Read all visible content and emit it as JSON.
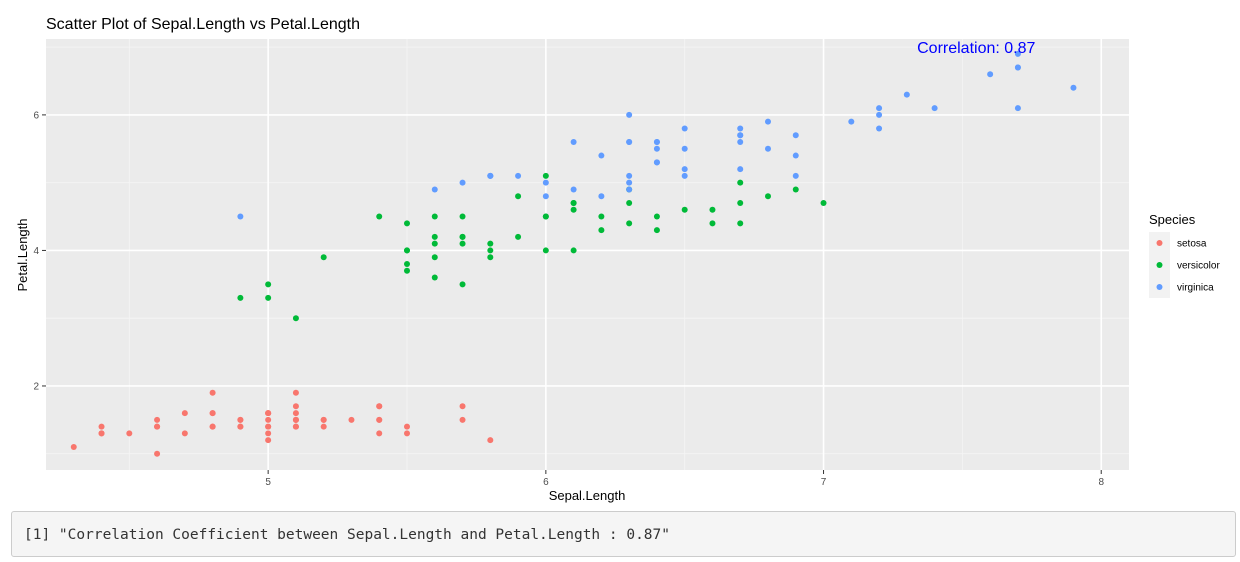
{
  "chart_data": {
    "type": "scatter",
    "title": "Scatter Plot of Sepal.Length vs Petal.Length",
    "xlabel": "Sepal.Length",
    "ylabel": "Petal.Length",
    "xlim": [
      4.2,
      8.1
    ],
    "ylim": [
      0.76,
      7.12
    ],
    "xticks": [
      5,
      6,
      7,
      8
    ],
    "yticks": [
      2,
      4,
      6
    ],
    "x_minor": [
      4.5,
      5.5,
      6.5,
      7.5
    ],
    "y_minor": [
      1,
      3,
      5,
      7
    ],
    "grid": true,
    "legend_title": "Species",
    "legend_position": "right",
    "annotation": {
      "text": "Correlation: 0.87",
      "x": 7.55,
      "y": 7.0,
      "color": "#0000FF"
    },
    "series": [
      {
        "name": "setosa",
        "color": "#F8766D",
        "points": [
          [
            5.1,
            1.4
          ],
          [
            4.9,
            1.4
          ],
          [
            4.7,
            1.3
          ],
          [
            4.6,
            1.5
          ],
          [
            5.0,
            1.4
          ],
          [
            5.4,
            1.7
          ],
          [
            4.6,
            1.4
          ],
          [
            5.0,
            1.5
          ],
          [
            4.4,
            1.4
          ],
          [
            4.9,
            1.5
          ],
          [
            5.4,
            1.5
          ],
          [
            4.8,
            1.6
          ],
          [
            4.8,
            1.4
          ],
          [
            4.3,
            1.1
          ],
          [
            5.8,
            1.2
          ],
          [
            5.7,
            1.5
          ],
          [
            5.4,
            1.3
          ],
          [
            5.1,
            1.4
          ],
          [
            5.7,
            1.7
          ],
          [
            5.1,
            1.5
          ],
          [
            5.4,
            1.7
          ],
          [
            5.1,
            1.5
          ],
          [
            4.6,
            1.0
          ],
          [
            5.1,
            1.7
          ],
          [
            4.8,
            1.9
          ],
          [
            5.0,
            1.6
          ],
          [
            5.0,
            1.6
          ],
          [
            5.2,
            1.5
          ],
          [
            5.2,
            1.4
          ],
          [
            4.7,
            1.6
          ],
          [
            4.8,
            1.6
          ],
          [
            5.4,
            1.5
          ],
          [
            5.2,
            1.5
          ],
          [
            5.5,
            1.4
          ],
          [
            4.9,
            1.5
          ],
          [
            5.0,
            1.2
          ],
          [
            5.5,
            1.3
          ],
          [
            4.9,
            1.4
          ],
          [
            4.4,
            1.3
          ],
          [
            5.1,
            1.5
          ],
          [
            5.0,
            1.3
          ],
          [
            4.5,
            1.3
          ],
          [
            4.4,
            1.3
          ],
          [
            5.0,
            1.6
          ],
          [
            5.1,
            1.9
          ],
          [
            4.8,
            1.4
          ],
          [
            5.1,
            1.6
          ],
          [
            4.6,
            1.4
          ],
          [
            5.3,
            1.5
          ],
          [
            5.0,
            1.4
          ]
        ]
      },
      {
        "name": "versicolor",
        "color": "#00BA38",
        "points": [
          [
            7.0,
            4.7
          ],
          [
            6.4,
            4.5
          ],
          [
            6.9,
            4.9
          ],
          [
            5.5,
            4.0
          ],
          [
            6.5,
            4.6
          ],
          [
            5.7,
            4.5
          ],
          [
            6.3,
            4.7
          ],
          [
            4.9,
            3.3
          ],
          [
            6.6,
            4.6
          ],
          [
            5.2,
            3.9
          ],
          [
            5.0,
            3.5
          ],
          [
            5.9,
            4.2
          ],
          [
            6.0,
            4.0
          ],
          [
            6.1,
            4.7
          ],
          [
            5.6,
            3.6
          ],
          [
            6.7,
            4.4
          ],
          [
            5.6,
            4.5
          ],
          [
            5.8,
            4.1
          ],
          [
            6.2,
            4.5
          ],
          [
            5.6,
            3.9
          ],
          [
            5.9,
            4.8
          ],
          [
            6.1,
            4.0
          ],
          [
            6.3,
            4.9
          ],
          [
            6.1,
            4.7
          ],
          [
            6.4,
            4.3
          ],
          [
            6.6,
            4.4
          ],
          [
            6.8,
            4.8
          ],
          [
            6.7,
            5.0
          ],
          [
            6.0,
            4.5
          ],
          [
            5.7,
            3.5
          ],
          [
            5.5,
            3.8
          ],
          [
            5.5,
            3.7
          ],
          [
            5.8,
            3.9
          ],
          [
            6.0,
            5.1
          ],
          [
            5.4,
            4.5
          ],
          [
            6.0,
            4.5
          ],
          [
            6.7,
            4.7
          ],
          [
            6.3,
            4.4
          ],
          [
            5.6,
            4.1
          ],
          [
            5.5,
            4.0
          ],
          [
            5.5,
            4.4
          ],
          [
            6.1,
            4.6
          ],
          [
            5.8,
            4.0
          ],
          [
            5.0,
            3.3
          ],
          [
            5.6,
            4.2
          ],
          [
            5.7,
            4.2
          ],
          [
            5.7,
            4.2
          ],
          [
            6.2,
            4.3
          ],
          [
            5.1,
            3.0
          ],
          [
            5.7,
            4.1
          ]
        ]
      },
      {
        "name": "virginica",
        "color": "#619CFF",
        "points": [
          [
            6.3,
            6.0
          ],
          [
            5.8,
            5.1
          ],
          [
            7.1,
            5.9
          ],
          [
            6.3,
            5.6
          ],
          [
            6.5,
            5.8
          ],
          [
            7.6,
            6.6
          ],
          [
            4.9,
            4.5
          ],
          [
            7.3,
            6.3
          ],
          [
            6.7,
            5.8
          ],
          [
            7.2,
            6.1
          ],
          [
            6.5,
            5.1
          ],
          [
            6.4,
            5.3
          ],
          [
            6.8,
            5.5
          ],
          [
            5.7,
            5.0
          ],
          [
            5.8,
            5.1
          ],
          [
            6.4,
            5.3
          ],
          [
            6.5,
            5.5
          ],
          [
            7.7,
            6.7
          ],
          [
            7.7,
            6.9
          ],
          [
            6.0,
            5.0
          ],
          [
            6.9,
            5.7
          ],
          [
            5.6,
            4.9
          ],
          [
            7.7,
            6.7
          ],
          [
            6.3,
            4.9
          ],
          [
            6.7,
            5.7
          ],
          [
            7.2,
            6.0
          ],
          [
            6.2,
            4.8
          ],
          [
            6.1,
            4.9
          ],
          [
            6.4,
            5.6
          ],
          [
            7.2,
            5.8
          ],
          [
            7.4,
            6.1
          ],
          [
            7.9,
            6.4
          ],
          [
            6.4,
            5.6
          ],
          [
            6.3,
            5.1
          ],
          [
            6.1,
            5.6
          ],
          [
            7.7,
            6.1
          ],
          [
            6.3,
            5.6
          ],
          [
            6.4,
            5.5
          ],
          [
            6.0,
            4.8
          ],
          [
            6.9,
            5.4
          ],
          [
            6.7,
            5.6
          ],
          [
            6.9,
            5.1
          ],
          [
            5.8,
            5.1
          ],
          [
            6.8,
            5.9
          ],
          [
            6.7,
            5.7
          ],
          [
            6.7,
            5.2
          ],
          [
            6.3,
            5.0
          ],
          [
            6.5,
            5.2
          ],
          [
            6.2,
            5.4
          ],
          [
            5.9,
            5.1
          ]
        ]
      }
    ]
  },
  "console": {
    "output": "[1] \"Correlation Coefficient between Sepal.Length and Petal.Length : 0.87\""
  }
}
